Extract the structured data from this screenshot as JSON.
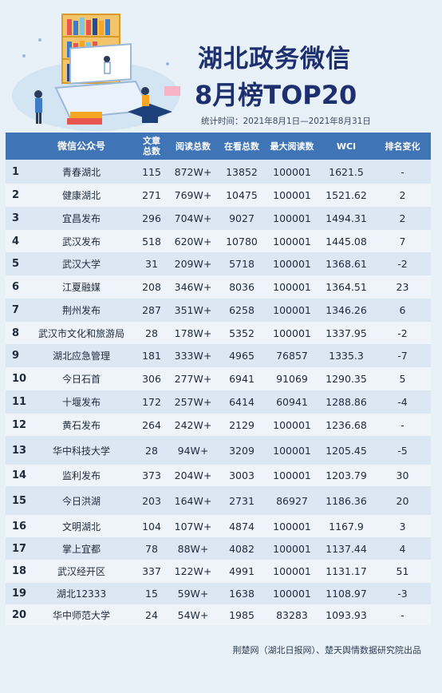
{
  "header": {
    "title_line1": "湖北政务微信",
    "title_line2": "8月榜TOP20",
    "period": "统计时间：2021年8月1日—2021年8月31日"
  },
  "table": {
    "columns": [
      "微信公众号",
      "文章总数",
      "阅读总数",
      "在看总数",
      "最大阅读数",
      "WCI",
      "排名变化"
    ],
    "rows": [
      {
        "rank": "1",
        "name": "青春湖北",
        "articles": "115",
        "reads": "872W+",
        "likes": "13852",
        "max_read": "100001",
        "wci": "1621.5",
        "change": "-"
      },
      {
        "rank": "2",
        "name": "健康湖北",
        "articles": "271",
        "reads": "769W+",
        "likes": "10475",
        "max_read": "100001",
        "wci": "1521.62",
        "change": "2"
      },
      {
        "rank": "3",
        "name": "宜昌发布",
        "articles": "296",
        "reads": "704W+",
        "likes": "9027",
        "max_read": "100001",
        "wci": "1494.31",
        "change": "2"
      },
      {
        "rank": "4",
        "name": "武汉发布",
        "articles": "518",
        "reads": "620W+",
        "likes": "10780",
        "max_read": "100001",
        "wci": "1445.08",
        "change": "7"
      },
      {
        "rank": "5",
        "name": "武汉大学",
        "articles": "31",
        "reads": "209W+",
        "likes": "5718",
        "max_read": "100001",
        "wci": "1368.61",
        "change": "-2"
      },
      {
        "rank": "6",
        "name": "江夏融媒",
        "articles": "208",
        "reads": "346W+",
        "likes": "8036",
        "max_read": "100001",
        "wci": "1364.51",
        "change": "23"
      },
      {
        "rank": "7",
        "name": "荆州发布",
        "articles": "287",
        "reads": "351W+",
        "likes": "6258",
        "max_read": "100001",
        "wci": "1346.26",
        "change": "6"
      },
      {
        "rank": "8",
        "name": "武汉市文化和旅游局",
        "articles": "28",
        "reads": "178W+",
        "likes": "5352",
        "max_read": "100001",
        "wci": "1337.95",
        "change": "-2"
      },
      {
        "rank": "9",
        "name": "湖北应急管理",
        "articles": "181",
        "reads": "333W+",
        "likes": "4965",
        "max_read": "76857",
        "wci": "1335.3",
        "change": "-7"
      },
      {
        "rank": "10",
        "name": "今日石首",
        "articles": "306",
        "reads": "277W+",
        "likes": "6941",
        "max_read": "91069",
        "wci": "1290.35",
        "change": "5"
      },
      {
        "rank": "11",
        "name": "十堰发布",
        "articles": "172",
        "reads": "257W+",
        "likes": "6414",
        "max_read": "60941",
        "wci": "1288.86",
        "change": "-4"
      },
      {
        "rank": "12",
        "name": "黄石发布",
        "articles": "264",
        "reads": "242W+",
        "likes": "2129",
        "max_read": "100001",
        "wci": "1236.68",
        "change": "-"
      },
      {
        "rank": "13",
        "name": "华中科技大学",
        "articles": "28",
        "reads": "94W+",
        "likes": "3209",
        "max_read": "100001",
        "wci": "1205.45",
        "change": "-5"
      },
      {
        "rank": "14",
        "name": "监利发布",
        "articles": "373",
        "reads": "204W+",
        "likes": "3003",
        "max_read": "100001",
        "wci": "1203.79",
        "change": "30"
      },
      {
        "rank": "15",
        "name": "今日洪湖",
        "articles": "203",
        "reads": "164W+",
        "likes": "2731",
        "max_read": "86927",
        "wci": "1186.36",
        "change": "20"
      },
      {
        "rank": "16",
        "name": "文明湖北",
        "articles": "104",
        "reads": "107W+",
        "likes": "4874",
        "max_read": "100001",
        "wci": "1167.9",
        "change": "3"
      },
      {
        "rank": "17",
        "name": "掌上宜都",
        "articles": "78",
        "reads": "88W+",
        "likes": "4082",
        "max_read": "100001",
        "wci": "1137.44",
        "change": "4"
      },
      {
        "rank": "18",
        "name": "武汉经开区",
        "articles": "337",
        "reads": "122W+",
        "likes": "4991",
        "max_read": "100001",
        "wci": "1131.17",
        "change": "51"
      },
      {
        "rank": "19",
        "name": "湖北12333",
        "articles": "15",
        "reads": "59W+",
        "likes": "1638",
        "max_read": "100001",
        "wci": "1108.97",
        "change": "-3"
      },
      {
        "rank": "20",
        "name": "华中师范大学",
        "articles": "24",
        "reads": "54W+",
        "likes": "1985",
        "max_read": "83283",
        "wci": "1093.93",
        "change": "-"
      }
    ]
  },
  "footer": "荆楚网（湖北日报网）、楚天舆情数据研究院出品",
  "colors": {
    "header_bg": "#3f74b6",
    "title": "#1d2f6f",
    "row_alt": "#dbe8f3",
    "page_bg": "#e8f1f7"
  },
  "illustration": "books-laptop-students-illustration"
}
